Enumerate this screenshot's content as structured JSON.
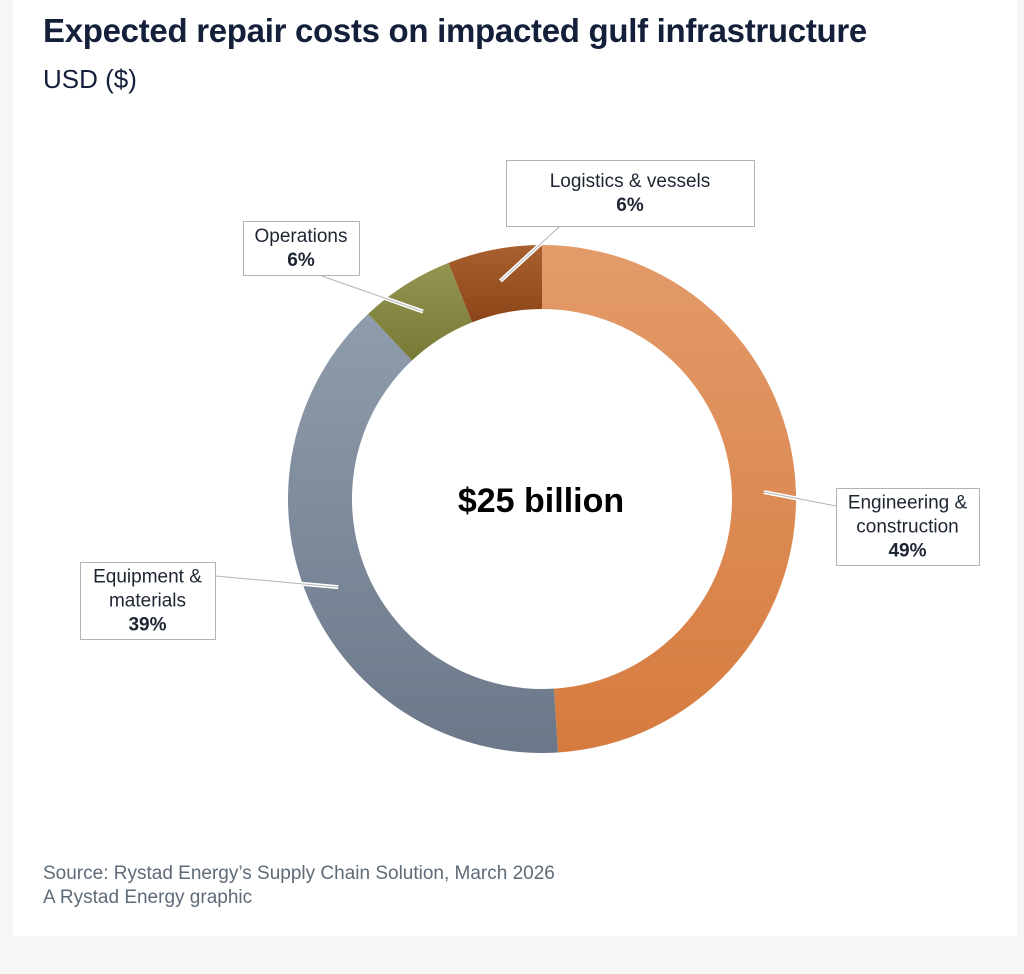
{
  "title": "Expected repair costs on impacted gulf infrastructure",
  "subtitle": "USD ($)",
  "center_label": "$25 billion",
  "chart_data": {
    "type": "pie",
    "title": "Expected repair costs on impacted gulf infrastructure",
    "subtitle": "USD ($)",
    "unit": "%",
    "total_label": "$25 billion",
    "slices": [
      {
        "name": "Engineering & construction",
        "label_lines": [
          "Engineering &",
          "construction"
        ],
        "value": 49,
        "value_label": "49%",
        "color_light": "#e39b6a",
        "color_dark": "#d67b3f"
      },
      {
        "name": "Equipment & materials",
        "label_lines": [
          "Equipment &",
          "materials"
        ],
        "value": 39,
        "value_label": "39%",
        "color_light": "#8f9cac",
        "color_dark": "#6b7889"
      },
      {
        "name": "Operations",
        "label_lines": [
          "Operations"
        ],
        "value": 6,
        "value_label": "6%",
        "color_light": "#949550",
        "color_dark": "#777a36"
      },
      {
        "name": "Logistics & vessels",
        "label_lines": [
          "Logistics & vessels"
        ],
        "value": 6,
        "value_label": "6%",
        "color_light": "#a9602f",
        "color_dark": "#8c4518"
      }
    ]
  },
  "source": {
    "line1": "Source: Rystad Energy’s Supply Chain Solution, March 2026",
    "line2": "A Rystad Energy graphic"
  }
}
